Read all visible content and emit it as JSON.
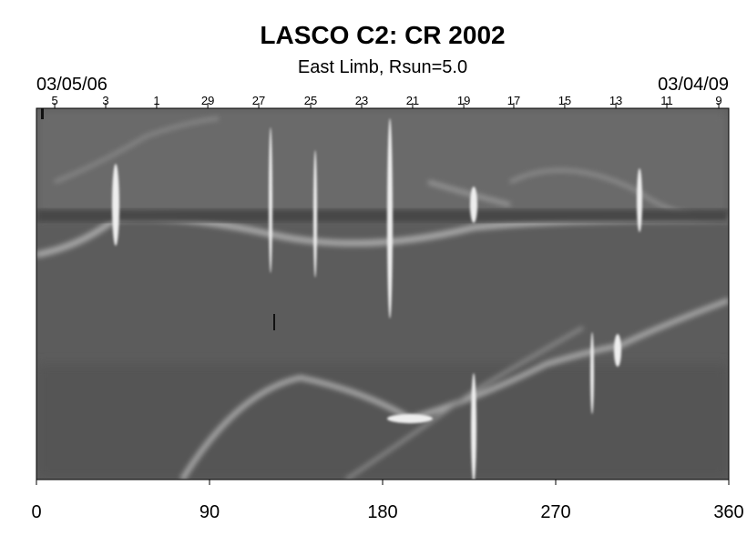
{
  "chart_data": {
    "type": "synoptic-map",
    "title": "LASCO C2: CR 2002",
    "subtitle": "East Limb, Rsun=5.0",
    "start_date": "03/05/06",
    "end_date": "03/04/09",
    "xlim": [
      0,
      360
    ],
    "xticks": [
      0,
      90,
      180,
      270,
      360
    ],
    "top_ticks": [
      {
        "value": 9.5,
        "label": "5"
      },
      {
        "value": 36,
        "label": "3"
      },
      {
        "value": 62.5,
        "label": "1"
      },
      {
        "value": 89.1,
        "label": "29"
      },
      {
        "value": 115.6,
        "label": "27"
      },
      {
        "value": 142.6,
        "label": "25"
      },
      {
        "value": 169.1,
        "label": "23"
      },
      {
        "value": 195.6,
        "label": "21"
      },
      {
        "value": 222.2,
        "label": "19"
      },
      {
        "value": 248.2,
        "label": "17"
      },
      {
        "value": 274.7,
        "label": "15"
      },
      {
        "value": 301.3,
        "label": "13"
      },
      {
        "value": 327.8,
        "label": "11"
      },
      {
        "value": 354.8,
        "label": "9"
      }
    ]
  }
}
